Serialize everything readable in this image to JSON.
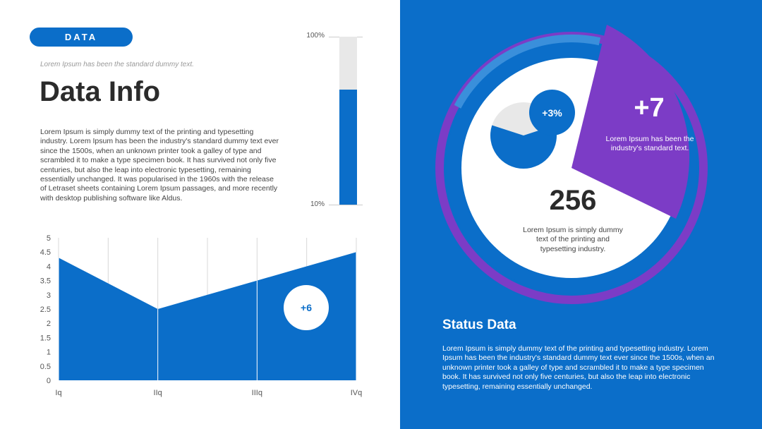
{
  "header": {
    "pill_label": "DATA",
    "tagline": "Lorem Ipsum has been the standard dummy text.",
    "title": "Data Info",
    "body": "Lorem Ipsum is simply dummy text of the printing and typesetting industry. Lorem Ipsum has been the industry's standard dummy text ever since the 1500s, when an unknown printer took a galley of type and scrambled it to make a type specimen book. It has survived not only five centuries, but also the leap into electronic typesetting, remaining essentially unchanged. It was popularised in the 1960s with the release of Letraset sheets containing Lorem Ipsum passages, and more recently with desktop publishing software like Aldus."
  },
  "progress": {
    "top_label": "100%",
    "bottom_label": "10%",
    "value_fraction": 0.685
  },
  "chart_data": {
    "type": "area",
    "categories": [
      "Iq",
      "IIq",
      "IIIq",
      "IVq"
    ],
    "values": [
      4.3,
      2.5,
      3.5,
      4.5
    ],
    "ylim": [
      0,
      5
    ],
    "yticks": [
      "0",
      "0.5",
      "1",
      "1.5",
      "2",
      "2.5",
      "3",
      "3.5",
      "4",
      "4.5",
      "5"
    ],
    "ytick_values": [
      0,
      0.5,
      1,
      1.5,
      2,
      2.5,
      3,
      3.5,
      4,
      4.5,
      5
    ],
    "badge": "+6",
    "color": "#0b6ec9"
  },
  "kpis": {
    "pie_badge": "+3%",
    "pie_fraction": 0.6,
    "main_value": "256",
    "main_desc": "Lorem Ipsum is simply dummy text of the printing and typesetting industry.",
    "highlight_value": "+7",
    "highlight_desc": "Lorem Ipsum has been the industry's standard text."
  },
  "status": {
    "title": "Status Data",
    "body": "Lorem Ipsum is simply dummy text of the printing and typesetting industry. Lorem Ipsum has been the industry's standard dummy text ever since the 1500s, when an unknown printer took a galley of type and scrambled it to make a type specimen book. It has survived not only five centuries, but also the leap into electronic typesetting, remaining essentially unchanged."
  },
  "colors": {
    "primary_blue": "#0b6ec9",
    "purple": "#7c3cc6",
    "light_ring": "#3a8fdb",
    "light_gray": "#e8e8e8"
  }
}
